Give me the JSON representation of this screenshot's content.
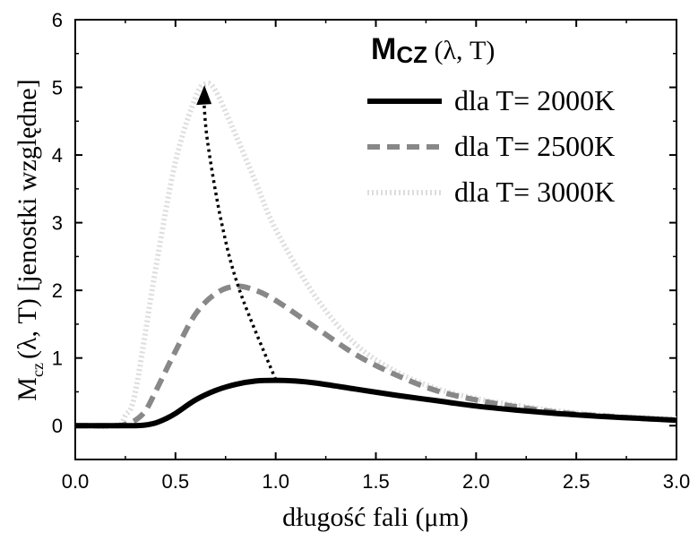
{
  "chart_data": {
    "type": "line",
    "title": "M_CZ (λ, T)",
    "title_parts": {
      "main": "M",
      "sub": "CZ",
      "rest": " (λ, T)"
    },
    "xlabel": "długość fali (μm)",
    "ylabel_parts": {
      "main": "M",
      "sub": "cz",
      "rest": "(λ, T) [jenostki względne]"
    },
    "xlim": [
      0,
      3
    ],
    "ylim": [
      -0.5,
      6
    ],
    "xticks": [
      "0.0",
      "0.5",
      "1.0",
      "1.5",
      "2.0",
      "2.5",
      "3.0"
    ],
    "yticks": [
      "0",
      "1",
      "2",
      "3",
      "4",
      "5",
      "6"
    ],
    "grid": false,
    "legend_position": "top-right",
    "series": [
      {
        "name": "dla T= 2000K",
        "style": "solid",
        "color": "#000000",
        "x": [
          0.0,
          0.2,
          0.3,
          0.35,
          0.4,
          0.45,
          0.5,
          0.6,
          0.7,
          0.8,
          0.9,
          1.0,
          1.1,
          1.2,
          1.4,
          1.6,
          1.8,
          2.0,
          2.2,
          2.4,
          2.6,
          2.8,
          3.0
        ],
        "y": [
          0.0,
          0.0,
          0.0,
          0.01,
          0.04,
          0.1,
          0.18,
          0.38,
          0.52,
          0.61,
          0.66,
          0.67,
          0.66,
          0.63,
          0.54,
          0.45,
          0.37,
          0.29,
          0.23,
          0.18,
          0.14,
          0.11,
          0.08
        ]
      },
      {
        "name": "dla T= 2500K",
        "style": "dashed",
        "color": "#888888",
        "x": [
          0.0,
          0.2,
          0.25,
          0.3,
          0.35,
          0.4,
          0.5,
          0.6,
          0.7,
          0.8,
          0.9,
          1.0,
          1.2,
          1.4,
          1.6,
          1.8,
          2.0,
          2.2,
          2.4,
          2.6,
          2.8,
          3.0
        ],
        "y": [
          0.0,
          0.0,
          0.02,
          0.08,
          0.22,
          0.5,
          1.1,
          1.65,
          1.95,
          2.06,
          2.0,
          1.85,
          1.45,
          1.05,
          0.75,
          0.52,
          0.38,
          0.28,
          0.2,
          0.15,
          0.11,
          0.08
        ]
      },
      {
        "name": "dla T= 3000K",
        "style": "dotted",
        "color": "#dddddd",
        "x": [
          0.0,
          0.2,
          0.25,
          0.3,
          0.4,
          0.5,
          0.6,
          0.65,
          0.7,
          0.8,
          0.9,
          1.0,
          1.2,
          1.4,
          1.6,
          1.8,
          2.0,
          2.2,
          2.4,
          2.6,
          2.8,
          3.0
        ],
        "y": [
          0.0,
          0.0,
          0.15,
          0.5,
          2.3,
          3.9,
          4.85,
          5.05,
          4.95,
          4.3,
          3.6,
          2.9,
          1.9,
          1.2,
          0.8,
          0.55,
          0.4,
          0.3,
          0.22,
          0.16,
          0.12,
          0.1
        ]
      }
    ],
    "annotations": [
      {
        "type": "dotted-arrow",
        "color": "#000000",
        "points": [
          [
            1.0,
            0.68
          ],
          [
            0.82,
            2.0
          ],
          [
            0.73,
            3.0
          ],
          [
            0.66,
            4.2
          ],
          [
            0.64,
            4.9
          ]
        ]
      }
    ]
  }
}
